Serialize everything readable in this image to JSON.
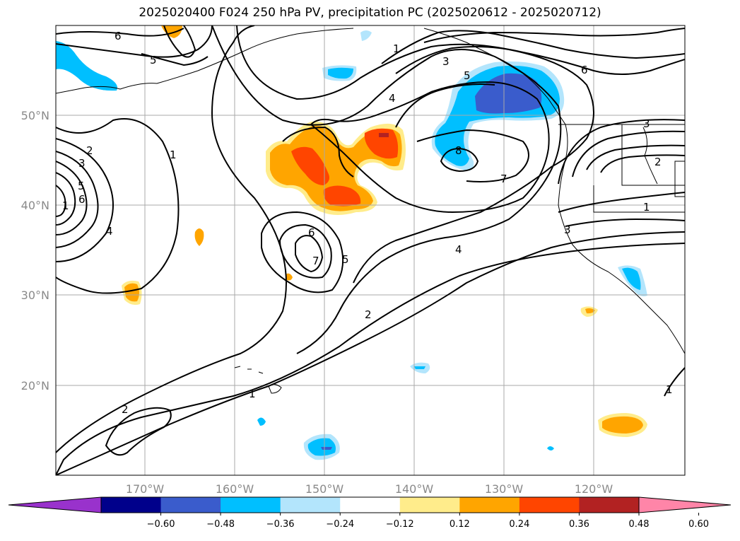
{
  "title": "2025020400 F024 250 hPa PV, precipitation PC (2025020612 - 2025020712)",
  "map": {
    "lon_labels": [
      "170°W",
      "160°W",
      "150°W",
      "140°W",
      "130°W",
      "120°W"
    ],
    "lat_labels": [
      "50°N",
      "40°N",
      "30°N",
      "20°N"
    ],
    "gridline_color": "#a9a9a9",
    "coastline_color": "#000000",
    "pv_contour_color": "#000000",
    "pv_contour_labels": [
      "6",
      "5",
      "2",
      "3",
      "5",
      "6",
      "1",
      "4",
      "1",
      "1",
      "2",
      "2",
      "3",
      "5",
      "4",
      "6",
      "7",
      "5",
      "4",
      "1",
      "8",
      "1",
      "7",
      "6",
      "3",
      "3",
      "2",
      "1"
    ]
  },
  "colorbar": {
    "ticks": [
      "−0.60",
      "−0.48",
      "−0.36",
      "−0.24",
      "−0.12",
      "0.12",
      "0.24",
      "0.36",
      "0.48",
      "0.60"
    ],
    "colors": [
      "#9932cc",
      "#00008b",
      "#3a5ccc",
      "#00bfff",
      "#b3e5fc",
      "#ffffff",
      "#ffec8b",
      "#ffa500",
      "#ff4500",
      "#b22222",
      "#ff85a8"
    ]
  },
  "fill_colors": {
    "light_blue": "#b3e5fc",
    "blue": "#00bfff",
    "mid_blue": "#3a5ccc",
    "yellow": "#ffec8b",
    "orange": "#ffa500",
    "red_orange": "#ff4500",
    "dark_red": "#b22222"
  }
}
